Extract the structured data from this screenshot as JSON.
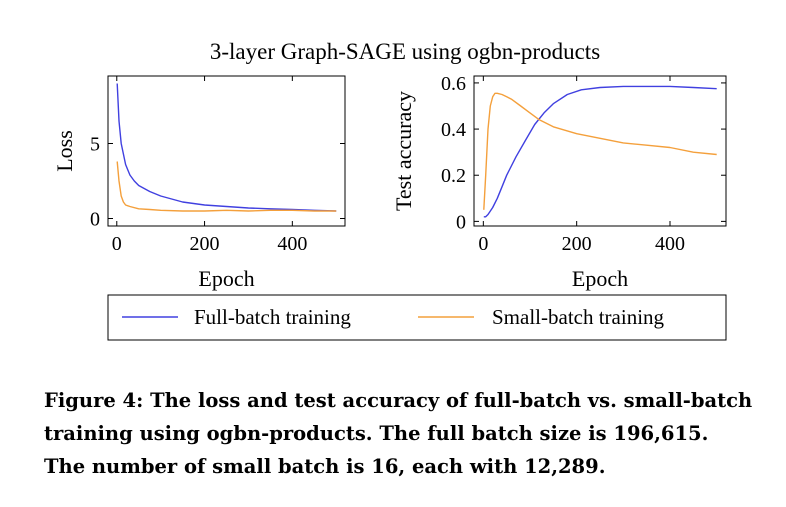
{
  "figure": {
    "title": "3-layer Graph-SAGE using ogbn-products",
    "caption": "Figure 4: The loss and test accuracy of full-batch vs. small-batch training using ogbn-products. The full batch size is 196,615. The number of small batch is 16, each with 12,289.",
    "legend": {
      "full": "Full-batch training",
      "small": "Small-batch training"
    }
  },
  "colors": {
    "full": "#4040e0",
    "small": "#f4a03c"
  },
  "chart_data": [
    {
      "type": "line",
      "xlabel": "Epoch",
      "ylabel": "Loss",
      "xlim": [
        -20,
        520
      ],
      "ylim": [
        -0.5,
        9.5
      ],
      "xticks": [
        0,
        200,
        400
      ],
      "yticks": [
        0,
        5
      ],
      "ytick_labels": [
        "0",
        "5"
      ],
      "series": [
        {
          "name": "Full-batch training",
          "x": [
            1,
            5,
            10,
            20,
            30,
            40,
            50,
            75,
            100,
            150,
            200,
            250,
            300,
            350,
            400,
            450,
            500
          ],
          "values": [
            9.0,
            6.5,
            5.0,
            3.6,
            2.9,
            2.5,
            2.2,
            1.8,
            1.5,
            1.1,
            0.9,
            0.8,
            0.7,
            0.65,
            0.6,
            0.55,
            0.5
          ]
        },
        {
          "name": "Small-batch training",
          "x": [
            1,
            5,
            10,
            15,
            20,
            30,
            50,
            75,
            100,
            150,
            200,
            250,
            300,
            350,
            400,
            450,
            500
          ],
          "values": [
            3.8,
            2.5,
            1.5,
            1.1,
            0.9,
            0.8,
            0.65,
            0.6,
            0.55,
            0.5,
            0.5,
            0.55,
            0.5,
            0.55,
            0.55,
            0.5,
            0.5
          ]
        }
      ]
    },
    {
      "type": "line",
      "xlabel": "Epoch",
      "ylabel": "Test accuracy",
      "xlim": [
        -20,
        520
      ],
      "ylim": [
        -0.02,
        0.63
      ],
      "xticks": [
        0,
        200,
        400
      ],
      "yticks": [
        0,
        0.2,
        0.4,
        0.6
      ],
      "ytick_labels": [
        "0",
        "0.2",
        "0.4",
        "0.6"
      ],
      "series": [
        {
          "name": "Full-batch training",
          "x": [
            1,
            5,
            10,
            20,
            30,
            40,
            50,
            70,
            90,
            110,
            130,
            150,
            180,
            210,
            250,
            300,
            350,
            400,
            450,
            500
          ],
          "values": [
            0.02,
            0.02,
            0.03,
            0.06,
            0.1,
            0.15,
            0.2,
            0.28,
            0.35,
            0.42,
            0.47,
            0.51,
            0.55,
            0.57,
            0.58,
            0.585,
            0.585,
            0.585,
            0.58,
            0.575
          ]
        },
        {
          "name": "Small-batch training",
          "x": [
            1,
            5,
            10,
            15,
            20,
            25,
            30,
            40,
            50,
            60,
            80,
            100,
            120,
            150,
            200,
            250,
            300,
            350,
            400,
            450,
            500
          ],
          "values": [
            0.05,
            0.2,
            0.4,
            0.5,
            0.54,
            0.555,
            0.555,
            0.55,
            0.54,
            0.53,
            0.5,
            0.47,
            0.44,
            0.41,
            0.38,
            0.36,
            0.34,
            0.33,
            0.32,
            0.3,
            0.29
          ]
        }
      ]
    }
  ]
}
